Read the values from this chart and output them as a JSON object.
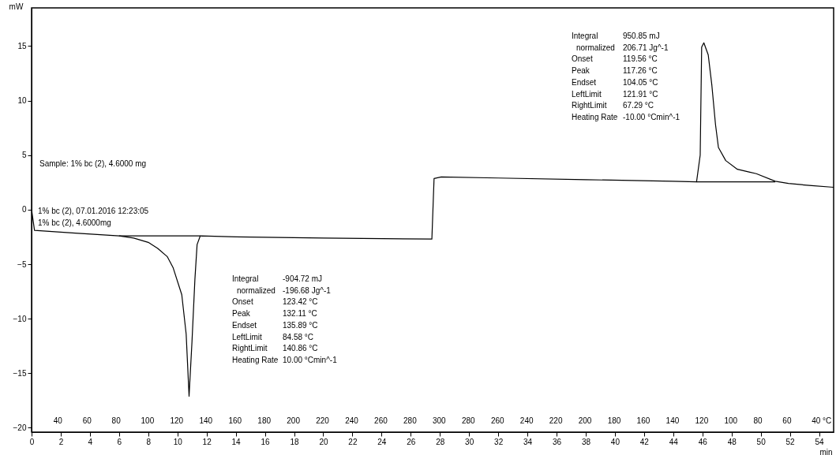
{
  "chart_data": {
    "type": "line",
    "xlabel": "min",
    "ylabel": "mW",
    "xlim": [
      0,
      55
    ],
    "ylim": [
      -20.4,
      18.5
    ],
    "xticks": [
      0,
      2,
      4,
      6,
      8,
      10,
      12,
      14,
      16,
      18,
      20,
      22,
      24,
      26,
      28,
      30,
      32,
      34,
      36,
      38,
      40,
      42,
      44,
      46,
      48,
      50,
      52,
      54
    ],
    "yticks": [
      -20,
      -15,
      -10,
      -5,
      0,
      5,
      10,
      15
    ],
    "grid": false,
    "series": [
      {
        "color": "#000000",
        "x": [
          0,
          0.2,
          3,
          6,
          7,
          8,
          8.65,
          9.3,
          9.7,
          10.3,
          10.6,
          10.8,
          11.0,
          11.2,
          11.35,
          11.57,
          14,
          20,
          27.45,
          27.6,
          28.1,
          32,
          38,
          44,
          45.6,
          45.85,
          45.95,
          46.1,
          46.4,
          46.65,
          46.9,
          47.1,
          47.6,
          48.4,
          49.2,
          49.7,
          51.0,
          51.9,
          53.5,
          55
        ],
        "values": [
          0,
          -1.9,
          -2.15,
          -2.4,
          -2.6,
          -3.0,
          -3.55,
          -4.3,
          -5.3,
          -7.8,
          -11.4,
          -17.1,
          -12.1,
          -6.4,
          -3.2,
          -2.4,
          -2.5,
          -2.6,
          -2.7,
          2.85,
          3.0,
          2.9,
          2.75,
          2.6,
          2.55,
          5,
          14.9,
          15.3,
          14.2,
          11.4,
          7.8,
          5.7,
          4.5,
          3.7,
          3.45,
          3.3,
          2.6,
          2.4,
          2.2,
          2.05
        ]
      },
      {
        "color": "#000000",
        "x": [
          6,
          11.57
        ],
        "values": [
          -2.4,
          -2.4
        ]
      },
      {
        "color": "#000000",
        "x": [
          45.6,
          51.0
        ],
        "values": [
          2.55,
          2.55
        ]
      }
    ],
    "annotations": [
      "Sample: 1% bc (2), 4.6000 mg",
      "1% bc (2), 07.01.2016 12:23:05",
      "1% bc (2), 4.6000mg",
      "Integral",
      "-904.72 mJ",
      "normalized",
      "-196.68 Jg^-1",
      "Onset",
      "123.42 °C",
      "Peak",
      "132.11 °C",
      "Endset",
      "135.89 °C",
      "LeftLimit",
      "84.58 °C",
      "RightLimit",
      "140.86 °C",
      "Heating Rate",
      "10.00 °Cmin^-1",
      "Integral",
      "950.85 mJ",
      "normalized",
      "206.71 Jg^-1",
      "Onset",
      "119.56 °C",
      "Peak",
      "117.26 °C",
      "Endset",
      "104.05 °C",
      "LeftLimit",
      "121.91 °C",
      "RightLimit",
      "67.29 °C",
      "Heating Rate",
      "-10.00 °Cmin^-1",
      "40",
      "60",
      "80",
      "100",
      "120",
      "140",
      "160",
      "180",
      "200",
      "220",
      "240",
      "260",
      "280",
      "300",
      "280",
      "260",
      "240",
      "220",
      "200",
      "180",
      "160",
      "140",
      "120",
      "100",
      "80",
      "60",
      "40",
      "°C"
    ]
  }
}
